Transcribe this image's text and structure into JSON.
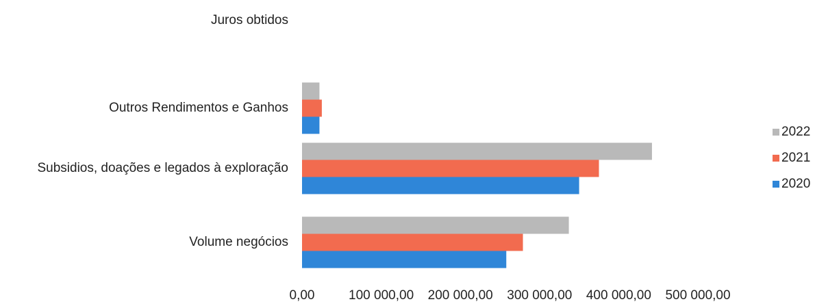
{
  "chart_data": {
    "type": "bar",
    "orientation": "horizontal",
    "title": "",
    "xlabel": "",
    "ylabel": "",
    "categories": [
      "Juros obtidos",
      "Outros Rendimentos e Ganhos",
      "Subsidios, doações e legados à exploração",
      "Volume negócios"
    ],
    "series": [
      {
        "name": "2022",
        "color": "#b9b9b9",
        "values": [
          0,
          22000,
          442000,
          337000
        ]
      },
      {
        "name": "2021",
        "color": "#f26b4f",
        "values": [
          0,
          25000,
          375000,
          279000
        ]
      },
      {
        "name": "2020",
        "color": "#2f86d8",
        "values": [
          0,
          22000,
          350000,
          258000
        ]
      }
    ],
    "xlim": [
      0,
      500000
    ],
    "xticks": [
      0,
      100000,
      200000,
      300000,
      400000,
      500000
    ],
    "xtick_labels": [
      "0,00",
      "100 000,00",
      "200 000,00",
      "300 000,00",
      "400 000,00",
      "500 000,00"
    ],
    "grid": false,
    "legend": {
      "position": "right",
      "entries": [
        "2022",
        "2021",
        "2020"
      ]
    }
  }
}
